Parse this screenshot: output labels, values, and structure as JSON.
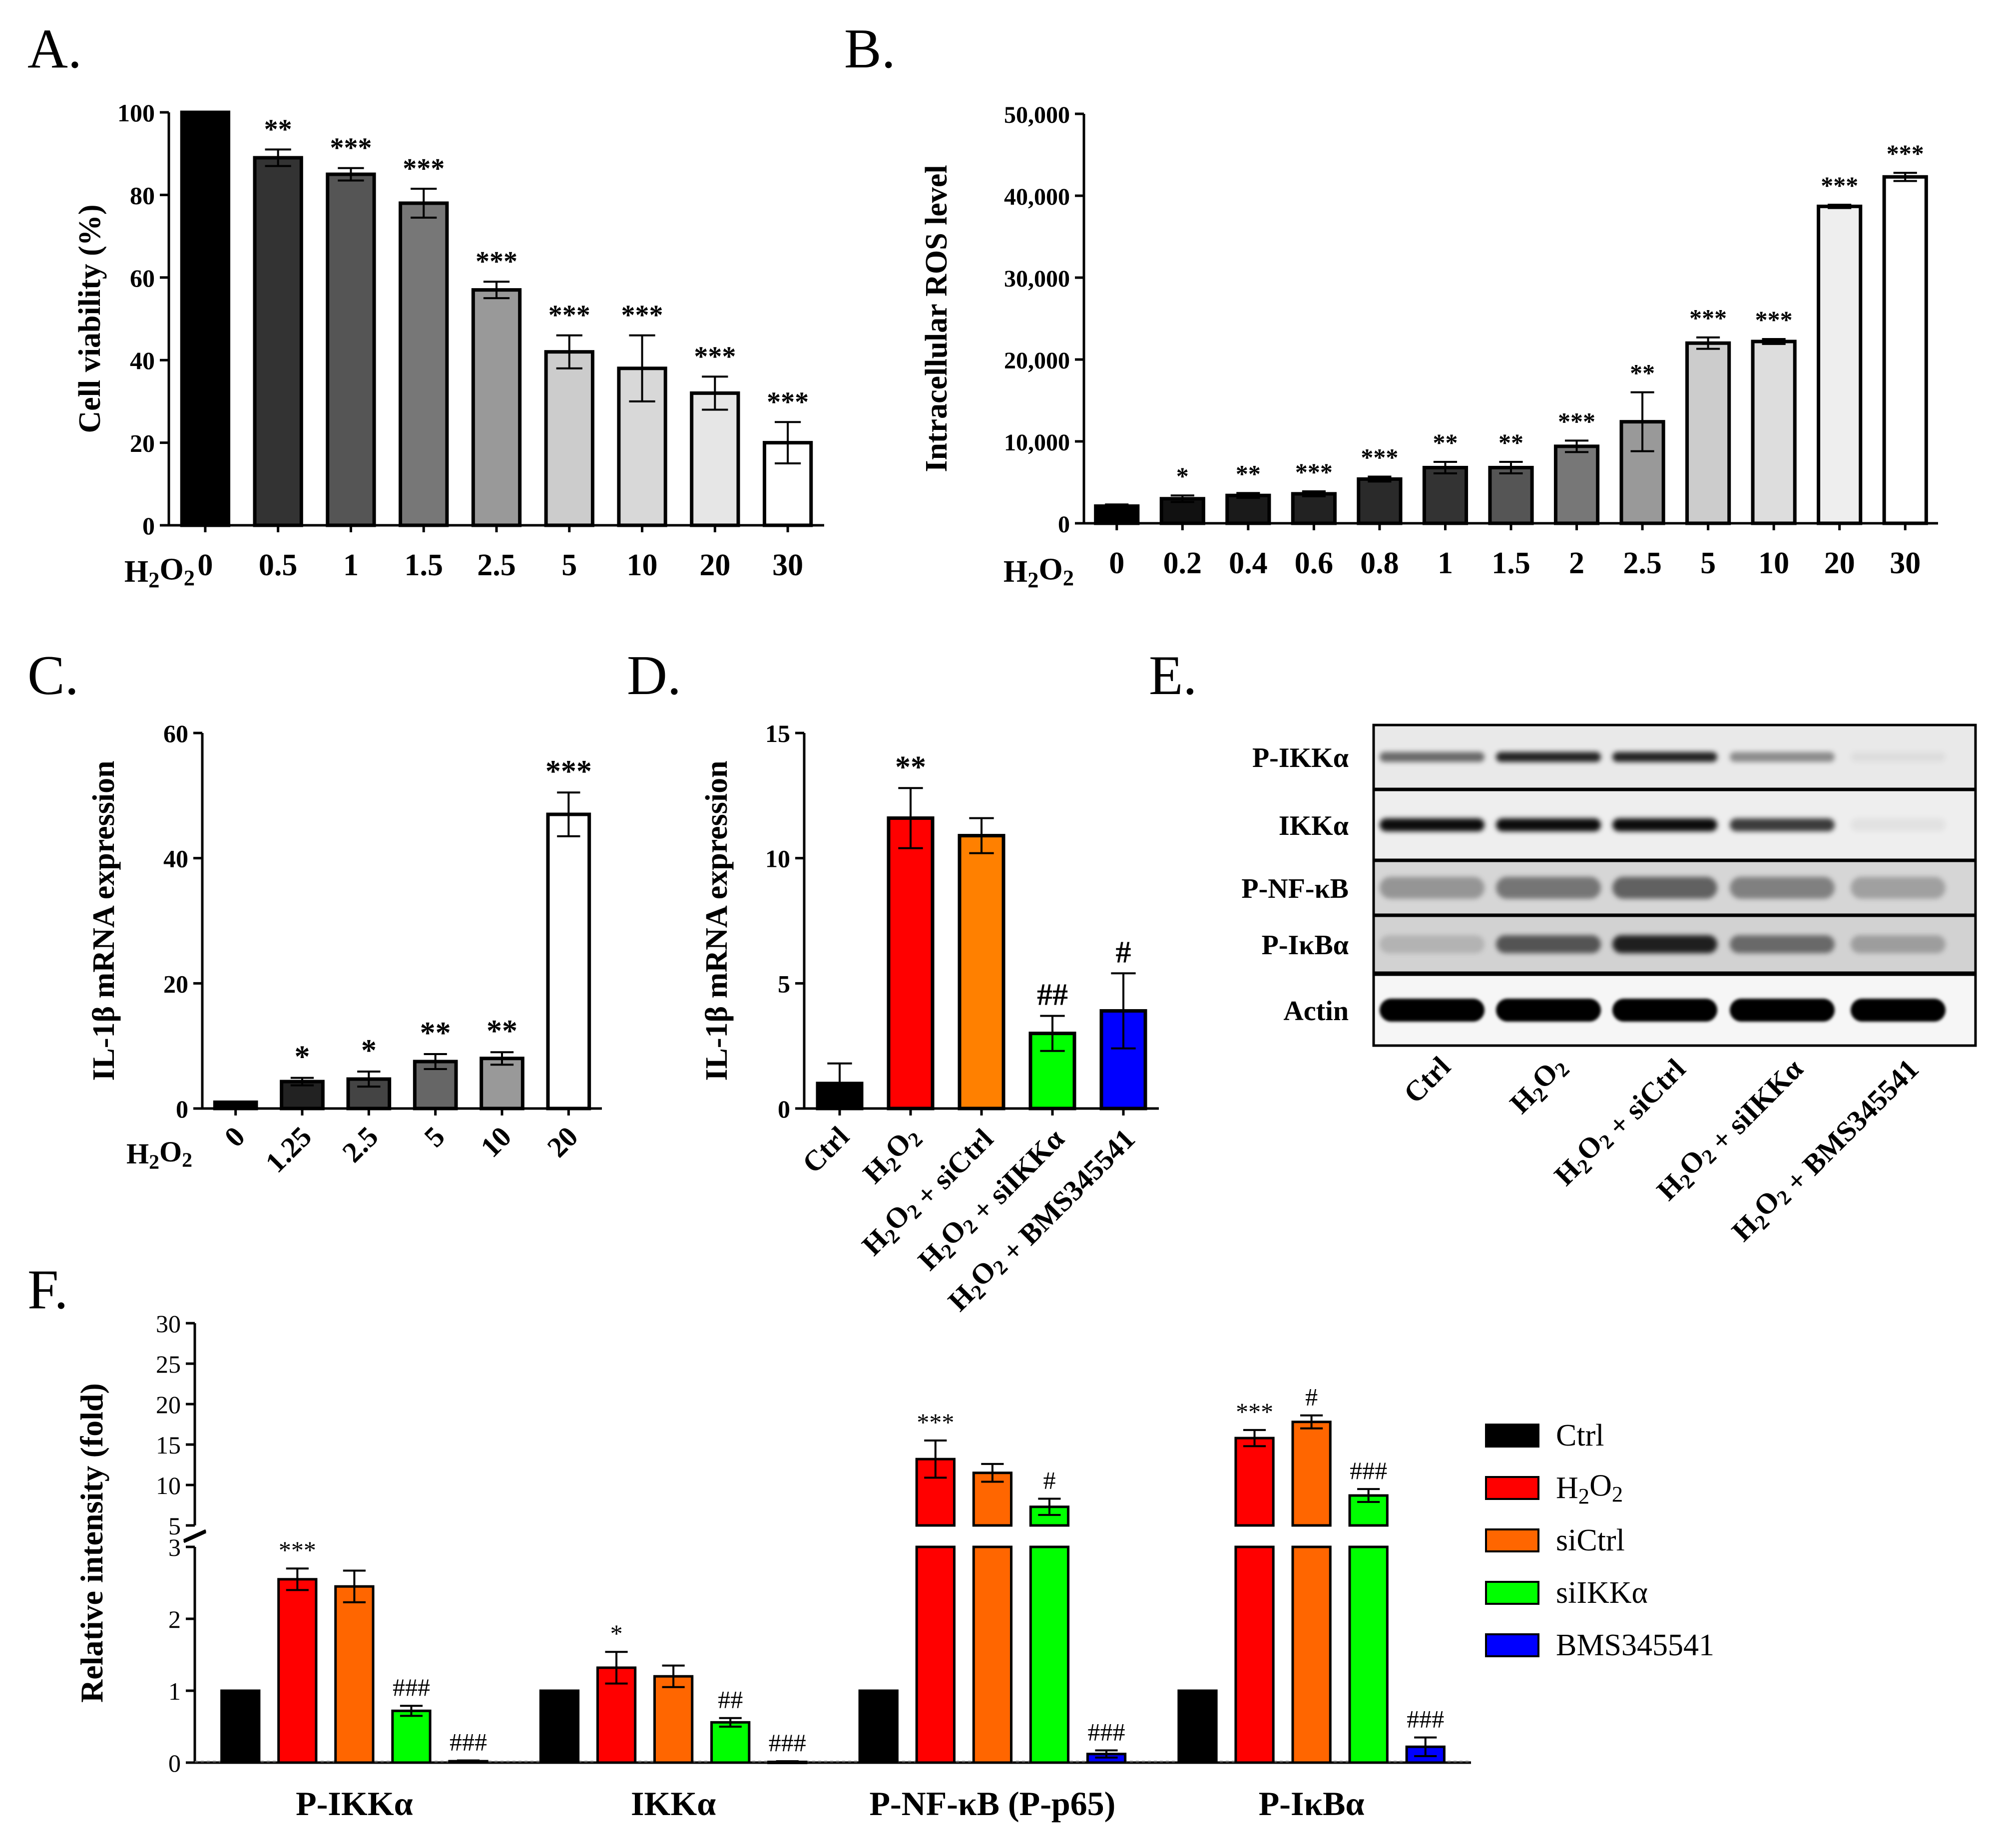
{
  "panels": [
    {
      "id": "A",
      "panel_label": "A.",
      "type": "bar",
      "ylabel": "Cell viability (%)",
      "treatment_label": "H2O2",
      "categories": [
        "0",
        "0.5",
        "1",
        "1.5",
        "2.5",
        "5",
        "10",
        "20",
        "30"
      ],
      "values": [
        100,
        89,
        85,
        78,
        57,
        42,
        38,
        32,
        20
      ],
      "errors": [
        0,
        2,
        1.5,
        3.5,
        2,
        4,
        8,
        4,
        5
      ],
      "significance": [
        "",
        "**",
        "***",
        "***",
        "***",
        "***",
        "***",
        "***",
        "***"
      ],
      "yticks": [
        "0",
        "20",
        "40",
        "60",
        "80",
        "100"
      ],
      "ylim": [
        0,
        100
      ],
      "colors": [
        "#000000",
        "#333333",
        "#555555",
        "#777777",
        "#999999",
        "#cccccc",
        "#d8d8d8",
        "#e6e6e6",
        "#ffffff"
      ]
    },
    {
      "id": "B",
      "panel_label": "B.",
      "type": "bar",
      "ylabel": "Intracellular ROS level",
      "treatment_label": "H2O2",
      "categories": [
        "0",
        "0.2",
        "0.4",
        "0.6",
        "0.8",
        "1",
        "1.5",
        "2",
        "2.5",
        "5",
        "10",
        "20",
        "30"
      ],
      "values": [
        2100,
        3000,
        3400,
        3600,
        5400,
        6800,
        6800,
        9400,
        12400,
        22000,
        22200,
        38700,
        42300
      ],
      "errors": [
        200,
        400,
        300,
        300,
        300,
        700,
        700,
        700,
        3600,
        700,
        300,
        200,
        500
      ],
      "significance": [
        "",
        "*",
        "**",
        "***",
        "***",
        "**",
        "**",
        "***",
        "**",
        "***",
        "***",
        "***",
        "***"
      ],
      "yticks": [
        "0",
        "10,000",
        "20,000",
        "30,000",
        "40,000",
        "50,000"
      ],
      "ylim": [
        0,
        50000
      ],
      "colors": [
        "#000000",
        "#111111",
        "#1a1a1a",
        "#222222",
        "#2a2a2a",
        "#333333",
        "#555555",
        "#777777",
        "#999999",
        "#cccccc",
        "#dddddd",
        "#eeeeee",
        "#ffffff"
      ]
    },
    {
      "id": "C",
      "panel_label": "C.",
      "type": "bar",
      "ylabel": "IL-1β mRNA expression",
      "treatment_label": "H2O2",
      "categories": [
        "0",
        "1.25",
        "2.5",
        "5",
        "10",
        "20"
      ],
      "values": [
        1,
        4.3,
        4.7,
        7.5,
        8,
        47
      ],
      "errors": [
        0,
        0.6,
        1.2,
        1.2,
        1,
        3.5
      ],
      "significance": [
        "",
        "*",
        "*",
        "**",
        "**",
        "***"
      ],
      "yticks": [
        "0",
        "20",
        "40",
        "60"
      ],
      "ylim": [
        0,
        60
      ],
      "colors": [
        "#000000",
        "#222222",
        "#444444",
        "#666666",
        "#999999",
        "#ffffff"
      ]
    },
    {
      "id": "D",
      "panel_label": "D.",
      "type": "bar",
      "ylabel": "IL-1β mRNA expression",
      "categories": [
        "Ctrl",
        "H2O2",
        "H2O2 + siCtrl",
        "H2O2 + siIKKα",
        "H2O2 + BMS345541"
      ],
      "values": [
        1,
        11.6,
        10.9,
        3,
        3.9
      ],
      "errors": [
        0.8,
        1.2,
        0.7,
        0.7,
        1.5
      ],
      "significance": [
        "",
        "**",
        "",
        "##",
        "#"
      ],
      "yticks": [
        "0",
        "5",
        "10",
        "15"
      ],
      "ylim": [
        0,
        15
      ],
      "colors": [
        "#000000",
        "#ff0000",
        "#ff8000",
        "#00ff00",
        "#0000ff"
      ]
    },
    {
      "id": "F",
      "panel_label": "F.",
      "type": "bar",
      "ylabel": "Relative intensity (fold)",
      "groups": [
        "P-IKKα",
        "IKKα",
        "P-NF-κB (P-p65)",
        "P-IκBα"
      ],
      "series": [
        {
          "name": "Ctrl",
          "values": [
            1,
            1,
            1,
            1
          ],
          "errors": [
            0,
            0,
            0,
            0
          ],
          "significance": [
            "",
            "",
            "",
            ""
          ]
        },
        {
          "name": "H2O2",
          "values": [
            2.55,
            1.32,
            13.2,
            15.8
          ],
          "errors": [
            0.15,
            0.22,
            2.3,
            1.0
          ],
          "significance": [
            "***",
            "*",
            "***",
            "***"
          ]
        },
        {
          "name": "siCtrl",
          "values": [
            2.45,
            1.2,
            11.5,
            17.8
          ],
          "errors": [
            0.22,
            0.15,
            1.1,
            0.8
          ],
          "significance": [
            "",
            "",
            "",
            "#"
          ]
        },
        {
          "name": "siIKKα",
          "values": [
            0.72,
            0.56,
            7.3,
            8.7
          ],
          "errors": [
            0.07,
            0.06,
            1.0,
            0.8
          ],
          "significance": [
            "###",
            "##",
            "#",
            "###"
          ]
        },
        {
          "name": "BMS345541",
          "values": [
            0.02,
            0.01,
            0.12,
            0.22
          ],
          "errors": [
            0.01,
            0.01,
            0.05,
            0.13
          ],
          "significance": [
            "###",
            "###",
            "###",
            "###"
          ]
        }
      ],
      "colors": [
        "#000000",
        "#ff0000",
        "#ff6600",
        "#00ff00",
        "#0000ff"
      ],
      "yticks_low": [
        "0",
        "1",
        "2",
        "3"
      ],
      "yticks_high": [
        "5",
        "10",
        "15",
        "20",
        "25",
        "30"
      ],
      "axis_break": [
        3,
        5
      ],
      "ylim": [
        0,
        30
      ]
    }
  ],
  "blot": {
    "panel_label": "E.",
    "rows": [
      "P-IKKα",
      "IKKα",
      "P-NF-κB",
      "P-IκBα",
      "Actin"
    ],
    "lanes": [
      "Ctrl",
      "H2O2",
      "H2O2 + siCtrl",
      "H2O2 + siIKKα",
      "H2O2 + BMS345541"
    ]
  },
  "legend": [
    "Ctrl",
    "H2O2",
    "siCtrl",
    "siIKKα",
    "BMS345541"
  ]
}
